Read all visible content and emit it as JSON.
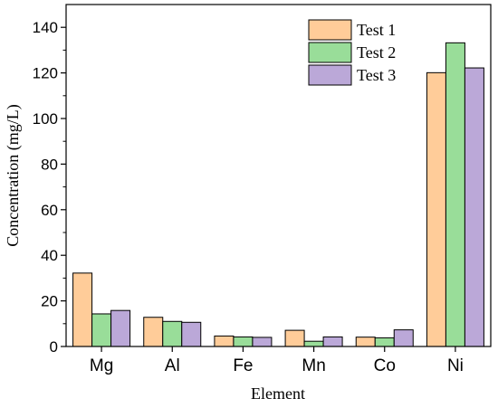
{
  "chart_data": {
    "type": "bar",
    "title": "",
    "xlabel": "Element",
    "ylabel": "Concentration (mg/L)",
    "categories": [
      "Mg",
      "Al",
      "Fe",
      "Mn",
      "Co",
      "Ni"
    ],
    "ylim": [
      0,
      150
    ],
    "yticks": [
      0,
      20,
      40,
      60,
      80,
      100,
      120,
      140
    ],
    "grid": false,
    "legend_position": "top-right",
    "series": [
      {
        "name": "Test 1",
        "color": "#FFCC99",
        "values": [
          32.2,
          12.8,
          4.6,
          7.1,
          4.1,
          120.1
        ]
      },
      {
        "name": "Test 2",
        "color": "#99DD99",
        "values": [
          14.3,
          11.0,
          4.2,
          2.3,
          3.8,
          133.2
        ]
      },
      {
        "name": "Test 3",
        "color": "#BBA8D8",
        "values": [
          15.8,
          10.6,
          4.0,
          4.2,
          7.3,
          122.2
        ]
      }
    ]
  }
}
